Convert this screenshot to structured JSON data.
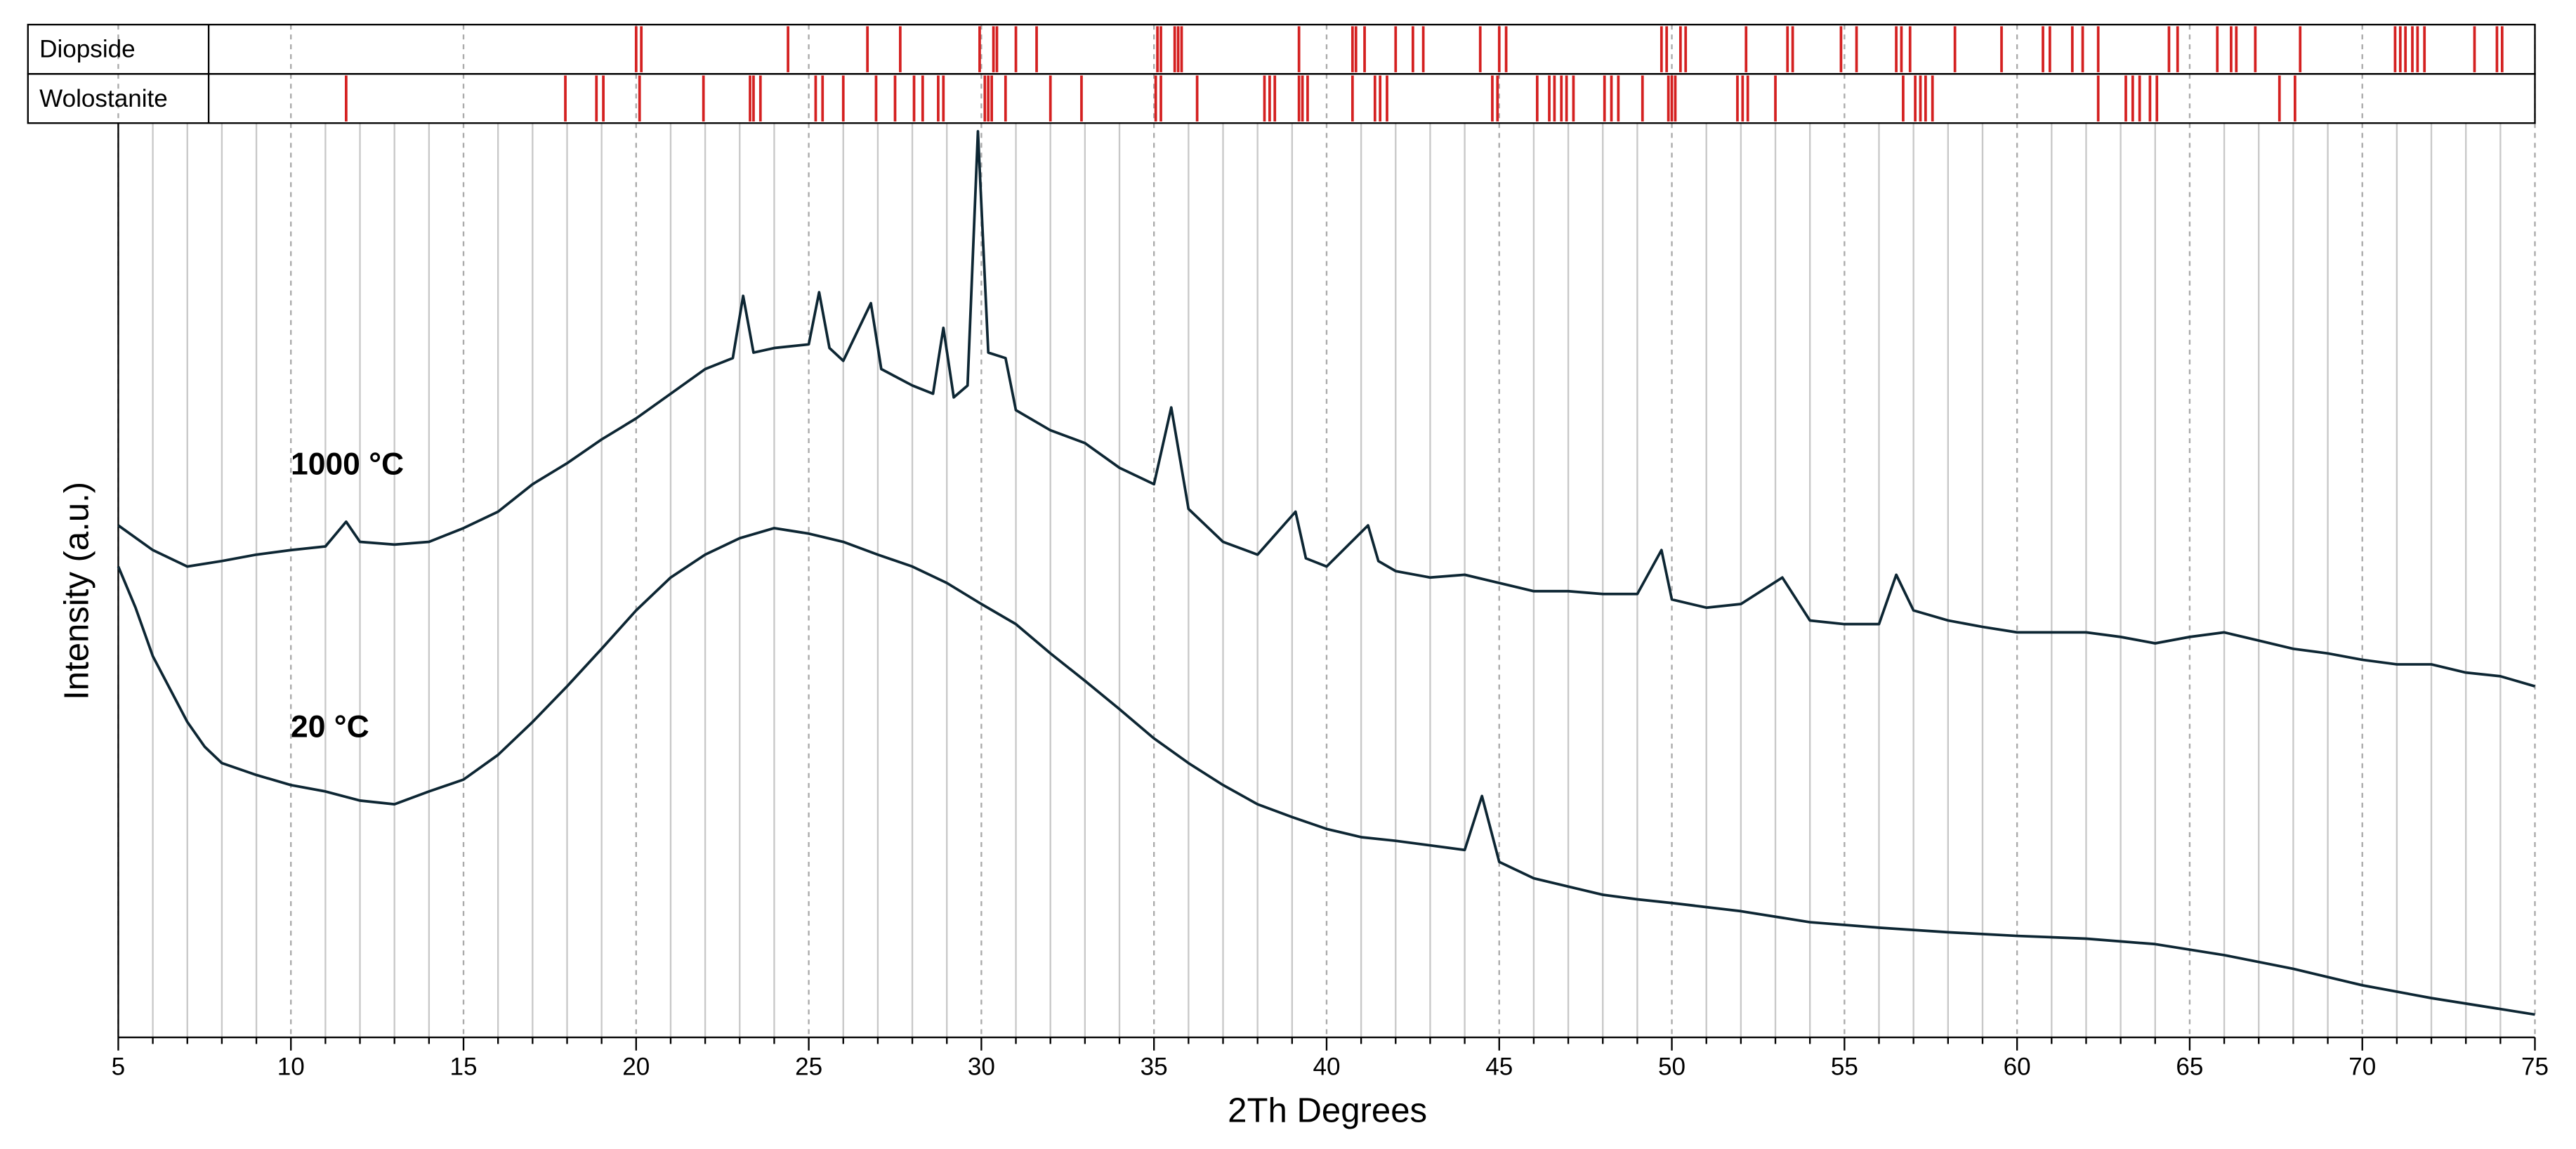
{
  "chart_data": {
    "type": "line",
    "xlabel": "2Th Degrees",
    "ylabel": "Intensity (a.u.)",
    "xlim": [
      5,
      75
    ],
    "ylim": [
      0,
      100
    ],
    "xticks": [
      5,
      10,
      15,
      20,
      25,
      30,
      35,
      40,
      45,
      50,
      55,
      60,
      65,
      70,
      75
    ],
    "xminorticks": [
      6,
      7,
      8,
      9,
      11,
      12,
      13,
      14,
      16,
      17,
      18,
      19,
      21,
      22,
      23,
      24,
      26,
      27,
      28,
      29,
      31,
      32,
      33,
      34,
      36,
      37,
      38,
      39,
      41,
      42,
      43,
      44,
      46,
      47,
      48,
      49,
      51,
      52,
      53,
      54,
      56,
      57,
      58,
      59,
      61,
      62,
      63,
      64,
      66,
      67,
      68,
      69,
      71,
      72,
      73,
      74
    ],
    "grid": true,
    "series": [
      {
        "name": "1000 °C",
        "color": "#0d2633",
        "x": [
          5,
          6,
          7,
          8,
          9,
          10,
          11,
          11.6,
          12,
          13,
          14,
          15,
          16,
          17,
          18,
          19,
          20,
          21,
          22,
          22.8,
          23.1,
          23.4,
          24,
          25,
          25.3,
          25.6,
          26,
          26.8,
          27.1,
          28,
          28.6,
          28.9,
          29.2,
          29.6,
          29.9,
          30.2,
          30.7,
          31,
          32,
          33,
          34,
          35,
          35.5,
          36,
          37,
          38,
          39.1,
          39.4,
          40,
          41.2,
          41.5,
          42,
          43,
          44,
          45,
          46,
          47,
          48,
          49,
          49.7,
          50,
          51,
          52,
          53.2,
          54,
          55,
          56,
          56.5,
          57,
          58,
          59,
          60,
          61,
          62,
          63,
          64,
          65,
          66,
          67,
          68,
          69,
          70,
          71,
          72,
          73,
          74,
          75
        ],
        "values": [
          56.0,
          53.3,
          51.5,
          52.1,
          52.8,
          53.3,
          53.7,
          56.4,
          54.2,
          53.9,
          54.2,
          55.7,
          57.5,
          60.5,
          62.8,
          65.4,
          67.7,
          70.4,
          73.1,
          74.3,
          81.1,
          74.9,
          75.4,
          75.8,
          81.5,
          75.4,
          74.0,
          80.3,
          73.1,
          71.3,
          70.4,
          77.6,
          70.0,
          71.3,
          99.1,
          74.9,
          74.3,
          68.6,
          66.4,
          65.0,
          62.3,
          60.5,
          68.9,
          57.8,
          54.2,
          52.8,
          57.5,
          52.4,
          51.5,
          56.0,
          52.1,
          51.0,
          50.3,
          50.6,
          49.7,
          48.8,
          48.8,
          48.5,
          48.5,
          53.3,
          47.9,
          47.0,
          47.4,
          50.3,
          45.6,
          45.2,
          45.2,
          50.6,
          46.7,
          45.6,
          44.9,
          44.3,
          44.3,
          44.3,
          43.8,
          43.1,
          43.8,
          44.3,
          43.4,
          42.5,
          42.0,
          41.3,
          40.8,
          40.8,
          39.9,
          39.5,
          38.4
        ]
      },
      {
        "name": "20 °C",
        "color": "#0d2633",
        "x": [
          5,
          5.5,
          6,
          6.5,
          7,
          7.5,
          8,
          9,
          10,
          11,
          12,
          13,
          14,
          15,
          16,
          17,
          18,
          19,
          20,
          21,
          22,
          23,
          24,
          25,
          26,
          27,
          28,
          29,
          30,
          31,
          32,
          33,
          34,
          35,
          36,
          37,
          38,
          39,
          40,
          41,
          42,
          43,
          44,
          44.5,
          45,
          46,
          47,
          48,
          49,
          50,
          52,
          54,
          56,
          58,
          60,
          62,
          64,
          66,
          68,
          70,
          72,
          74,
          75
        ],
        "values": [
          51.5,
          47.0,
          41.7,
          38.1,
          34.5,
          31.8,
          30.0,
          28.7,
          27.6,
          26.9,
          25.9,
          25.5,
          26.9,
          28.2,
          30.9,
          34.5,
          38.4,
          42.5,
          46.7,
          50.3,
          52.8,
          54.6,
          55.7,
          55.1,
          54.2,
          52.8,
          51.5,
          49.7,
          47.4,
          45.2,
          42.0,
          39.0,
          35.9,
          32.7,
          30.0,
          27.6,
          25.5,
          24.1,
          22.8,
          21.9,
          21.5,
          21.0,
          20.5,
          26.4,
          19.2,
          17.4,
          16.5,
          15.6,
          15.1,
          14.7,
          13.8,
          12.6,
          12.0,
          11.5,
          11.1,
          10.8,
          10.2,
          9.0,
          7.5,
          5.7,
          4.3,
          3.1,
          2.5
        ]
      }
    ],
    "phases": [
      {
        "name": "Diopside",
        "color": "#d42020",
        "positions": [
          20.0,
          20.15,
          24.4,
          26.7,
          27.65,
          29.95,
          30.35,
          30.45,
          31.0,
          31.6,
          35.1,
          35.2,
          35.6,
          35.7,
          35.8,
          39.2,
          40.75,
          40.85,
          41.1,
          42.0,
          42.5,
          42.8,
          44.45,
          45.0,
          45.2,
          49.7,
          49.85,
          50.25,
          50.4,
          52.15,
          53.35,
          53.5,
          54.9,
          55.35,
          56.5,
          56.65,
          56.9,
          58.2,
          59.55,
          60.75,
          60.95,
          61.6,
          61.9,
          62.35,
          64.4,
          64.65,
          65.8,
          66.2,
          66.35,
          66.9,
          68.2,
          70.95,
          71.1,
          71.25,
          71.45,
          71.6,
          71.8,
          73.25,
          73.9,
          74.05
        ]
      },
      {
        "name": "Wolostanite",
        "color": "#d42020",
        "positions": [
          11.6,
          17.95,
          18.85,
          19.05,
          20.1,
          21.95,
          23.3,
          23.4,
          23.6,
          25.2,
          25.4,
          26.0,
          26.95,
          27.5,
          28.05,
          28.3,
          28.75,
          28.9,
          30.1,
          30.2,
          30.3,
          30.7,
          32.0,
          32.9,
          35.05,
          35.2,
          36.25,
          38.2,
          38.35,
          38.5,
          39.2,
          39.3,
          39.45,
          40.75,
          41.4,
          41.55,
          41.75,
          44.8,
          44.95,
          46.1,
          46.45,
          46.6,
          46.8,
          46.95,
          47.15,
          48.05,
          48.25,
          48.45,
          49.15,
          49.9,
          50.0,
          50.1,
          51.9,
          52.05,
          52.2,
          53.0,
          56.7,
          57.05,
          57.2,
          57.35,
          57.55,
          62.35,
          63.15,
          63.35,
          63.55,
          63.85,
          64.05,
          67.6,
          68.05
        ]
      }
    ]
  }
}
